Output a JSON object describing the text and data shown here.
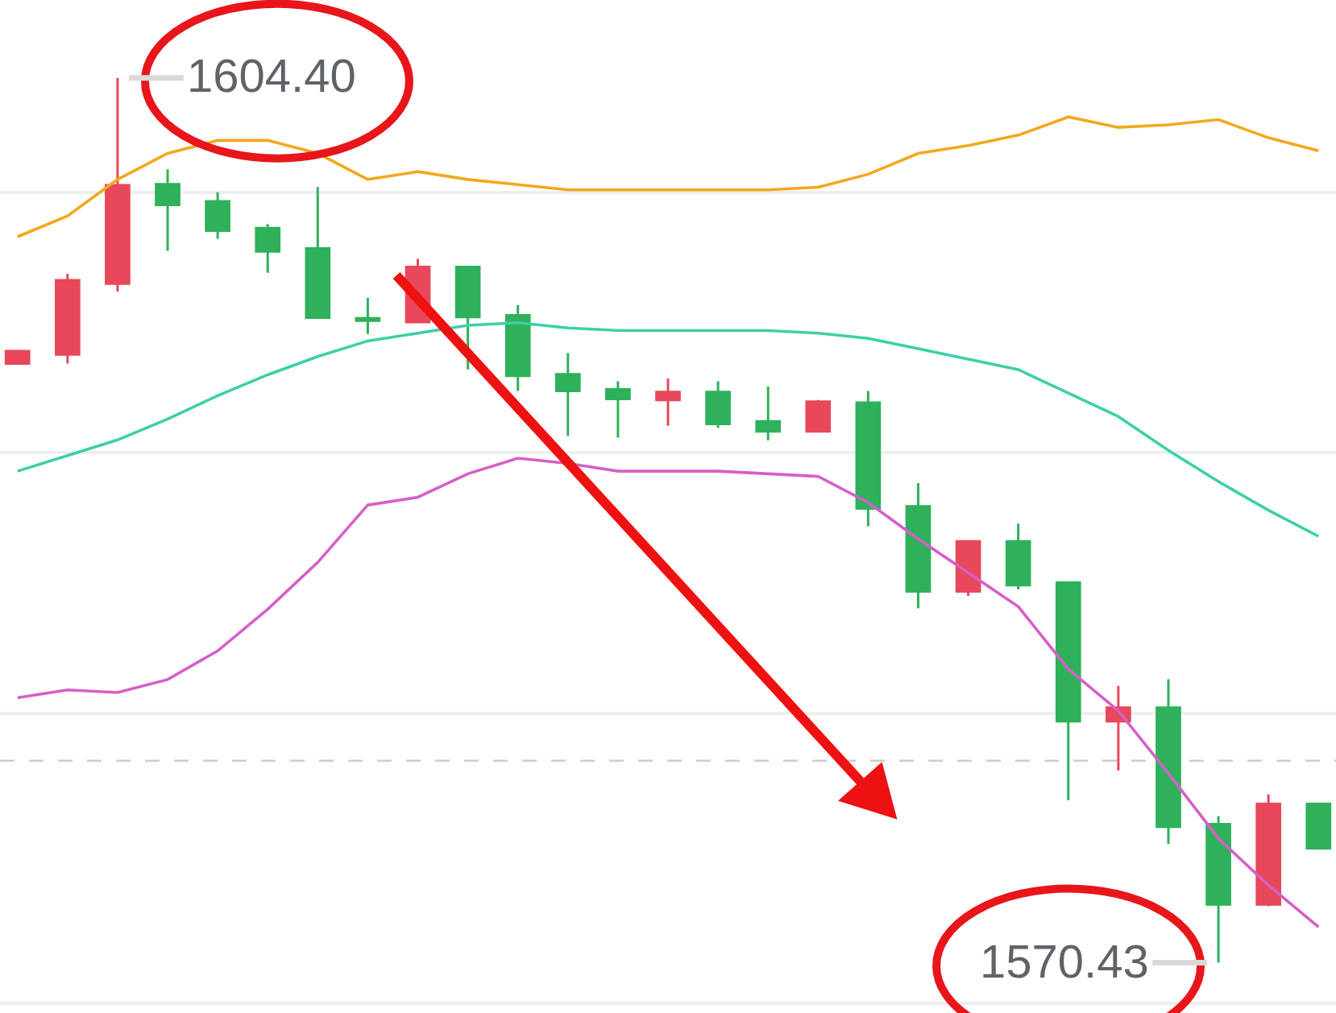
{
  "chart_data": {
    "type": "candlestick",
    "categories": [
      null,
      null,
      null,
      null,
      null,
      null,
      null,
      null,
      null,
      null,
      null,
      null,
      null,
      null,
      null,
      null,
      null,
      null,
      null,
      null,
      null,
      null,
      null,
      null,
      null,
      null,
      null
    ],
    "ohlc": [
      [
        1593.43,
        1593.91,
        1593.43,
        1593.91
      ],
      [
        1593.78,
        1596.88,
        1593.43,
        1596.63
      ],
      [
        1596.5,
        1604.4,
        1596.2,
        1600.28
      ],
      [
        1600.32,
        1600.89,
        1597.76,
        1599.52
      ],
      [
        1599.66,
        1600.01,
        1598.22,
        1598.53
      ],
      [
        1598.63,
        1598.79,
        1596.92,
        1597.74
      ],
      [
        1597.85,
        1600.21,
        1595.19,
        1595.19
      ],
      [
        1595.17,
        1595.95,
        1594.57,
        1595.08
      ],
      [
        1595.02,
        1597.45,
        1595.02,
        1597.14
      ],
      [
        1597.14,
        1597.14,
        1593.21,
        1595.22
      ],
      [
        1595.29,
        1595.68,
        1592.38,
        1592.96
      ],
      [
        1593.02,
        1593.83,
        1590.65,
        1592.38
      ],
      [
        1592.44,
        1592.75,
        1590.59,
        1592.07
      ],
      [
        1592.03,
        1592.86,
        1591.04,
        1592.34
      ],
      [
        1592.34,
        1592.75,
        1590.96,
        1591.11
      ],
      [
        1591.21,
        1592.55,
        1590.49,
        1590.83
      ],
      [
        1590.83,
        1592.03,
        1590.83,
        1591.97
      ],
      [
        1591.93,
        1592.38,
        1587.19,
        1587.87
      ],
      [
        1587.95,
        1588.84,
        1584.03,
        1584.68
      ],
      [
        1584.68,
        1586.61,
        1584.51,
        1586.61
      ],
      [
        1586.61,
        1587.29,
        1584.76,
        1584.92
      ],
      [
        1585.02,
        1585.02,
        1576.67,
        1579.7
      ],
      [
        1579.7,
        1581.06,
        1577.81,
        1580.22
      ],
      [
        1580.22,
        1581.31,
        1574.99,
        1575.65
      ],
      [
        1575.75,
        1576.06,
        1570.43,
        1572.66
      ],
      [
        1572.66,
        1576.89,
        1572.59,
        1576.53
      ],
      [
        1576.53,
        1576.53,
        1574.82,
        1574.82
      ]
    ],
    "colors": [
      "#e8485a",
      "#e8485a",
      "#e8485a",
      "#2eb15a",
      "#2eb15a",
      "#2eb15a",
      "#2eb15a",
      "#2eb15a",
      "#e8485a",
      "#2eb15a",
      "#2eb15a",
      "#2eb15a",
      "#2eb15a",
      "#e8485a",
      "#2eb15a",
      "#2eb15a",
      "#e8485a",
      "#2eb15a",
      "#2eb15a",
      "#e8485a",
      "#2eb15a",
      "#2eb15a",
      "#e8485a",
      "#2eb15a",
      "#2eb15a",
      "#e8485a",
      "#2eb15a"
    ],
    "series": [
      {
        "type": "line",
        "color": "#f2a81d",
        "values": [
          1598.3,
          1599.1,
          1600.5,
          1601.5,
          1602.0,
          1602.0,
          1601.5,
          1600.5,
          1600.8,
          1600.5,
          1600.3,
          1600.1,
          1600.1,
          1600.1,
          1600.1,
          1600.1,
          1600.2,
          1600.7,
          1601.5,
          1601.8,
          1602.2,
          1602.9,
          1602.5,
          1602.6,
          1602.8,
          1602.1,
          1601.6
        ]
      },
      {
        "type": "line",
        "color": "#3dcfa8",
        "values": [
          1589.3,
          1589.9,
          1590.5,
          1591.3,
          1592.2,
          1593.0,
          1593.7,
          1594.3,
          1594.6,
          1594.9,
          1595.0,
          1594.8,
          1594.7,
          1594.7,
          1594.7,
          1594.7,
          1594.6,
          1594.4,
          1594.0,
          1593.6,
          1593.2,
          1592.3,
          1591.4,
          1590.1,
          1588.9,
          1587.8,
          1586.8
        ]
      },
      {
        "type": "line",
        "color": "#d65fc8",
        "values": [
          1580.6,
          1580.9,
          1580.8,
          1581.3,
          1582.4,
          1584.0,
          1585.8,
          1588.0,
          1588.3,
          1589.2,
          1589.8,
          1589.6,
          1589.3,
          1589.3,
          1589.3,
          1589.2,
          1589.1,
          1588.1,
          1586.7,
          1585.4,
          1584.1,
          1581.7,
          1580.1,
          1577.7,
          1575.2,
          1573.4,
          1571.8
        ]
      }
    ],
    "ylim": [
      1568.93,
      1607.39
    ],
    "yticks": [
      {
        "value": 1580,
        "label": null
      },
      {
        "value": 1590,
        "label": null
      },
      {
        "value": 1600,
        "label": null
      }
    ],
    "grid": "y",
    "marker": "none",
    "line_style": "solid",
    "ref_lines": [
      {
        "axis": "y",
        "value": 1578.18,
        "color": "#cccccc",
        "line_style": "dashed"
      }
    ],
    "annotations": [
      "1604.40",
      "1570.43"
    ]
  }
}
